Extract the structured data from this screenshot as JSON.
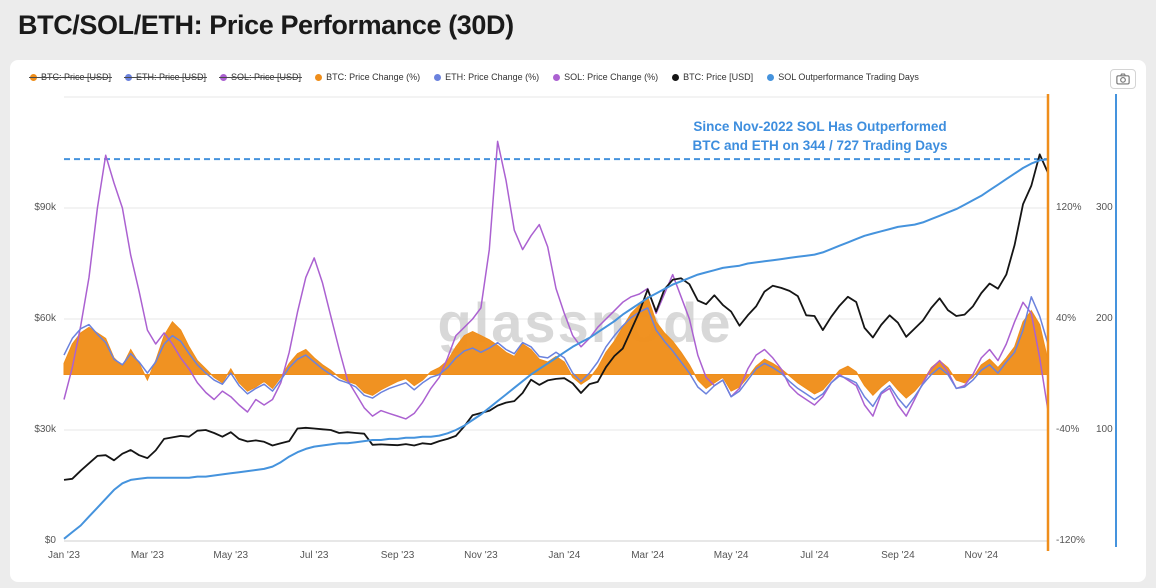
{
  "page": {
    "title": "BTC/SOL/ETH: Price Performance (30D)"
  },
  "legend": {
    "items": [
      {
        "label": "BTC: Price [USD]",
        "color": "#ef8e1b",
        "disabled": true
      },
      {
        "label": "ETH: Price [USD]",
        "color": "#6b82dd",
        "disabled": true
      },
      {
        "label": "SOL: Price [USD]",
        "color": "#ab61d1",
        "disabled": true
      },
      {
        "label": "BTC: Price Change (%)",
        "color": "#ef8e1b",
        "disabled": false
      },
      {
        "label": "ETH: Price Change (%)",
        "color": "#6b82dd",
        "disabled": false
      },
      {
        "label": "SOL: Price Change (%)",
        "color": "#ab61d1",
        "disabled": false
      },
      {
        "label": "BTC: Price [USD]",
        "color": "#151515",
        "disabled": false
      },
      {
        "label": "SOL Outperformance Trading Days",
        "color": "#4593dd",
        "disabled": false
      }
    ]
  },
  "annotation": {
    "line1": "Since Nov-2022 SOL Has Outperformed",
    "line2": "BTC and ETH on 344 / 727 Trading Days",
    "color": "#3e8ede"
  },
  "watermark": "glassnode",
  "chart_data": {
    "type": "line",
    "title": "BTC/SOL/ETH: Price Performance (30D)",
    "x_unit": "months_since_jan_2023",
    "x_range": [
      0,
      23.6
    ],
    "x_ticks": [
      {
        "pos": 0,
        "label": "Jan '23"
      },
      {
        "pos": 2,
        "label": "Mar '23"
      },
      {
        "pos": 4,
        "label": "May '23"
      },
      {
        "pos": 6,
        "label": "Jul '23"
      },
      {
        "pos": 8,
        "label": "Sep '23"
      },
      {
        "pos": 10,
        "label": "Nov '23"
      },
      {
        "pos": 12,
        "label": "Jan '24"
      },
      {
        "pos": 14,
        "label": "Mar '24"
      },
      {
        "pos": 16,
        "label": "May '24"
      },
      {
        "pos": 18,
        "label": "Jul '24"
      },
      {
        "pos": 20,
        "label": "Sep '24"
      },
      {
        "pos": 22,
        "label": "Nov '24"
      }
    ],
    "axes": {
      "left": {
        "unit": "USD (thousands)",
        "range": [
          0,
          120
        ],
        "ticks": [
          {
            "value": 0,
            "label": "$0"
          },
          {
            "value": 30,
            "label": "$30k"
          },
          {
            "value": 60,
            "label": "$60k"
          },
          {
            "value": 90,
            "label": "$90k"
          }
        ]
      },
      "right_pct": {
        "unit": "%",
        "range": [
          -120,
          200
        ],
        "ticks": [
          {
            "value": -120,
            "label": "-120%"
          },
          {
            "value": -40,
            "label": "-40%"
          },
          {
            "value": 40,
            "label": "40%"
          },
          {
            "value": 120,
            "label": "120%"
          }
        ]
      },
      "right_days": {
        "unit": "trading days",
        "range": [
          0,
          400
        ],
        "ticks": [
          {
            "value": 100,
            "label": "100"
          },
          {
            "value": 200,
            "label": "200"
          },
          {
            "value": 300,
            "label": "300"
          }
        ],
        "axis_line_color": "#4593dd"
      }
    },
    "right_edge_line_color": "#ef8e1b",
    "reference_line": {
      "axis": "right_days",
      "value": 344,
      "color": "#4593dd",
      "style": "dashed"
    },
    "series": [
      {
        "name": "BTC: Price Change (%)",
        "type": "area",
        "axis": "right_pct",
        "color": "#ef8e1b",
        "x_start": 0,
        "x_step": 0.2,
        "values": [
          8,
          22,
          30,
          34,
          30,
          26,
          12,
          6,
          18,
          8,
          -4,
          10,
          28,
          38,
          32,
          20,
          10,
          4,
          -2,
          -6,
          4,
          -6,
          -12,
          -9,
          -5,
          -10,
          -2,
          8,
          15,
          18,
          12,
          7,
          3,
          -2,
          -5,
          -7,
          -13,
          -15,
          -11,
          -8,
          -5,
          -3,
          -8,
          -4,
          2,
          5,
          10,
          20,
          28,
          31,
          28,
          25,
          21,
          16,
          13,
          22,
          18,
          11,
          9,
          13,
          9,
          -2,
          -7,
          -3,
          5,
          16,
          24,
          34,
          44,
          50,
          56,
          38,
          30,
          24,
          16,
          7,
          -4,
          -10,
          -6,
          -2,
          -12,
          -9,
          -2,
          6,
          11,
          8,
          4,
          -1,
          -6,
          -10,
          -14,
          -11,
          -4,
          3,
          6,
          2,
          -8,
          -15,
          -9,
          -4,
          -11,
          -17,
          -12,
          -5,
          5,
          10,
          5,
          -4,
          -6,
          -2,
          7,
          11,
          5,
          12,
          20,
          38,
          46,
          36,
          10
        ]
      },
      {
        "name": "SOL: Price Change (%)",
        "type": "line",
        "axis": "right_pct",
        "color": "#ab61d1",
        "x_start": 0,
        "x_step": 0.2,
        "values": [
          -18,
          5,
          35,
          70,
          120,
          158,
          138,
          120,
          86,
          60,
          32,
          22,
          30,
          22,
          12,
          4,
          -6,
          -13,
          -18,
          -12,
          -16,
          -22,
          -27,
          -18,
          -22,
          -18,
          -6,
          16,
          45,
          70,
          84,
          66,
          42,
          18,
          -4,
          -14,
          -24,
          -30,
          -26,
          -28,
          -30,
          -32,
          -28,
          -20,
          -10,
          -2,
          12,
          28,
          34,
          40,
          48,
          90,
          168,
          140,
          104,
          90,
          100,
          108,
          92,
          62,
          44,
          28,
          20,
          26,
          34,
          40,
          46,
          52,
          56,
          58,
          62,
          44,
          58,
          72,
          56,
          40,
          14,
          -2,
          -8,
          -4,
          -16,
          -10,
          4,
          14,
          18,
          12,
          4,
          -8,
          -14,
          -18,
          -22,
          -16,
          -6,
          0,
          -4,
          -8,
          -22,
          -30,
          -14,
          -10,
          -22,
          -30,
          -18,
          -6,
          4,
          10,
          2,
          -10,
          -8,
          0,
          12,
          18,
          10,
          22,
          38,
          52,
          44,
          12,
          -26
        ]
      },
      {
        "name": "ETH: Price Change (%)",
        "type": "line",
        "axis": "right_pct",
        "color": "#6b82dd",
        "x_start": 0,
        "x_step": 0.2,
        "values": [
          14,
          26,
          33,
          36,
          29,
          23,
          11,
          7,
          15,
          9,
          1,
          9,
          22,
          28,
          24,
          15,
          7,
          1,
          -4,
          -7,
          1,
          -8,
          -14,
          -10,
          -7,
          -12,
          -4,
          5,
          11,
          14,
          9,
          4,
          0,
          -4,
          -6,
          -9,
          -15,
          -17,
          -13,
          -10,
          -8,
          -6,
          -11,
          -6,
          -2,
          0,
          5,
          12,
          17,
          19,
          16,
          19,
          23,
          18,
          15,
          23,
          20,
          13,
          12,
          16,
          12,
          1,
          -5,
          1,
          9,
          20,
          28,
          35,
          41,
          45,
          48,
          32,
          24,
          17,
          9,
          1,
          -9,
          -14,
          -8,
          -4,
          -16,
          -12,
          -4,
          4,
          8,
          5,
          1,
          -5,
          -10,
          -14,
          -18,
          -14,
          -6,
          -1,
          -3,
          -6,
          -16,
          -23,
          -13,
          -8,
          -17,
          -24,
          -16,
          -7,
          0,
          5,
          0,
          -10,
          -9,
          -4,
          3,
          7,
          1,
          9,
          16,
          32,
          56,
          42,
          22
        ]
      },
      {
        "name": "BTC: Price [USD]",
        "type": "line",
        "axis": "left",
        "color": "#151515",
        "unit": "thousand USD",
        "x_start": 0,
        "x_step": 0.2,
        "values": [
          16.5,
          16.8,
          19,
          21,
          23,
          23.2,
          21.8,
          23.6,
          24.6,
          23.2,
          22.4,
          24.5,
          27.6,
          28,
          28.4,
          28.2,
          29.8,
          30,
          29.2,
          28.2,
          29.4,
          27.6,
          26.9,
          27.2,
          26.8,
          25.8,
          26.4,
          27,
          30.4,
          30.6,
          30.4,
          30.2,
          30,
          29.2,
          29.4,
          29.2,
          29,
          26,
          26.1,
          26,
          25.9,
          26.2,
          25.8,
          26.4,
          26.2,
          27,
          27.6,
          28.4,
          31,
          34,
          34.6,
          35.2,
          36.6,
          37.4,
          37.8,
          40,
          43.6,
          42.2,
          43.4,
          43.8,
          44,
          42.6,
          40,
          42.4,
          43,
          47,
          50,
          52,
          57,
          62,
          68,
          62,
          68,
          70.6,
          71,
          69.4,
          65,
          64,
          66.4,
          63.8,
          62,
          58.2,
          61,
          63.4,
          67.4,
          69,
          68.4,
          67.6,
          66.2,
          61,
          60.8,
          57,
          60.6,
          63.6,
          66,
          64.6,
          57.6,
          55,
          58.4,
          61,
          59,
          55.2,
          57.4,
          59.6,
          63,
          65.6,
          62.4,
          60.8,
          61.2,
          63.4,
          67,
          69.6,
          68.2,
          72,
          80,
          91,
          96,
          104.5,
          99.5
        ]
      },
      {
        "name": "SOL Outperformance Trading Days",
        "type": "line",
        "axis": "right_days",
        "color": "#4593dd",
        "x_start": 0,
        "x_step": 0.2,
        "values": [
          2,
          8,
          14,
          22,
          30,
          38,
          46,
          52,
          55,
          56,
          57,
          57,
          57,
          57,
          57,
          57,
          58,
          58,
          59,
          60,
          61,
          62,
          63,
          64,
          65,
          67,
          71,
          76,
          80,
          83,
          85,
          86,
          87,
          88,
          88,
          89,
          90,
          91,
          91,
          92,
          92,
          93,
          93,
          94,
          94,
          95,
          97,
          100,
          104,
          109,
          114,
          120,
          126,
          132,
          138,
          144,
          150,
          155,
          160,
          165,
          170,
          175,
          179,
          183,
          188,
          193,
          198,
          204,
          209,
          214,
          219,
          223,
          227,
          231,
          234,
          237,
          240,
          242,
          244,
          246,
          247,
          248,
          250,
          251,
          252,
          253,
          254,
          255,
          256,
          257,
          258,
          260,
          263,
          266,
          269,
          272,
          275,
          277,
          279,
          281,
          283,
          284,
          285,
          287,
          290,
          293,
          296,
          299,
          303,
          307,
          311,
          316,
          321,
          326,
          331,
          336,
          340,
          343,
          344
        ]
      }
    ]
  }
}
